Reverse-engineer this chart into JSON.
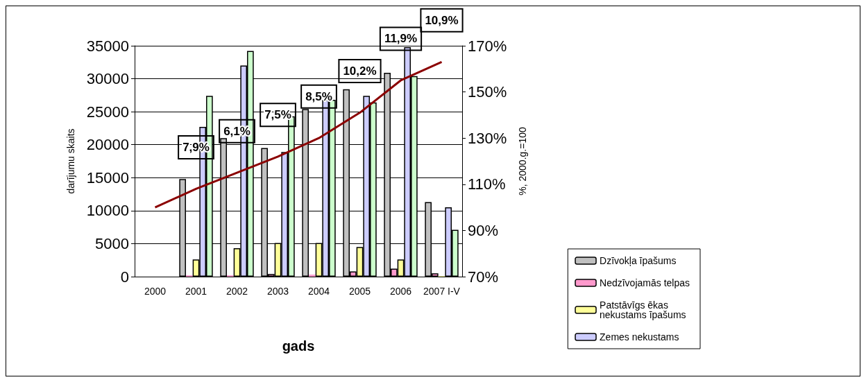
{
  "chart_data": {
    "type": "bar",
    "xlabel": "gads",
    "ylabel": "darījumu skaits",
    "y2label": "%, 2000.g.=100",
    "categories": [
      "2000",
      "2001",
      "2002",
      "2003",
      "2004",
      "2005",
      "2006",
      "2007 I-V"
    ],
    "series": [
      {
        "name": "Dzīvokļa īpašums",
        "color": "#c0c0c0",
        "values": [
          null,
          14800,
          21000,
          19500,
          25400,
          28400,
          30900,
          11300
        ]
      },
      {
        "name": "Nedzīvojamās telpas",
        "color": "#ff99cc",
        "values": [
          null,
          200,
          200,
          400,
          300,
          800,
          1200,
          500
        ]
      },
      {
        "name": "Patstāvīgs ēkas nekustams īpašums",
        "color": "#ffff99",
        "values": [
          null,
          2600,
          4300,
          5100,
          5100,
          4500,
          2600,
          100
        ]
      },
      {
        "name": "Zemes nekustams",
        "color": "#ccccff",
        "values": [
          null,
          22700,
          32000,
          18900,
          26800,
          27400,
          34800,
          10500
        ]
      },
      {
        "color": "#ccffcc",
        "values": [
          null,
          27400,
          34200,
          24300,
          26800,
          26400,
          30400,
          7100
        ]
      },
      {
        "type": "line",
        "axis": "y2",
        "color": "#8b0000",
        "values": [
          100,
          108,
          115,
          122,
          130,
          141,
          155,
          163
        ]
      }
    ],
    "annotations": [
      "7,9%",
      "6,1%",
      "7,5%",
      "8,5%",
      "10,2%",
      "11,9%",
      "10,9%"
    ],
    "ylim": [
      0,
      35000
    ],
    "yticks": [
      0,
      5000,
      10000,
      15000,
      20000,
      25000,
      30000,
      35000
    ],
    "y2lim": [
      70,
      170
    ],
    "y2ticks": [
      {
        "value": 70,
        "label": "70%"
      },
      {
        "value": 90,
        "label": "90%"
      },
      {
        "value": 110,
        "label": "110%"
      },
      {
        "value": 130,
        "label": "130%"
      },
      {
        "value": 150,
        "label": "150%"
      },
      {
        "value": 170,
        "label": "170%"
      }
    ],
    "grid": "y",
    "legend": "right"
  }
}
